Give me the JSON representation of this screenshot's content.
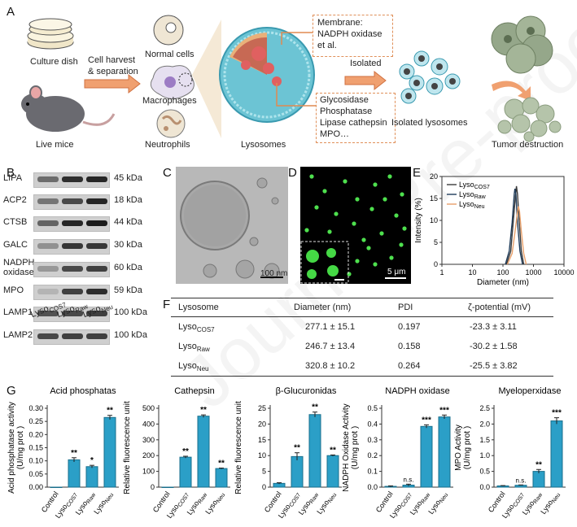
{
  "panelA": {
    "letter": "A",
    "culture_dish": "Culture dish",
    "live_mice": "Live mice",
    "cell_harvest_1": "Cell harvest",
    "cell_harvest_2": "& separation",
    "normal_cells": "Normal cells",
    "macrophages": "Macrophages",
    "neutrophils": "Neutrophils",
    "lysosomes": "Lysosomes",
    "membrane_1": "Membrane:",
    "membrane_2": "NADPH oxidase",
    "membrane_3": "et al.",
    "enzymes_1": "Glycosidase",
    "enzymes_2": "Phosphatase",
    "enzymes_3": "Lipase cathepsin",
    "enzymes_4": "MPO…",
    "isolated": "Isolated",
    "isolated_lysosomes": "Isolated lysosomes",
    "tumor_destruction": "Tumor destruction"
  },
  "panelB": {
    "letter": "B",
    "rows": [
      {
        "label": "LIPA",
        "kda": "45 kDa"
      },
      {
        "label": "ACP2",
        "kda": "18 kDa"
      },
      {
        "label": "CTSB",
        "kda": "44 kDa"
      },
      {
        "label": "GALC",
        "kda": "30 kDa"
      },
      {
        "label": "NADPH oxidase",
        "kda": "60 kDa"
      },
      {
        "label": "MPO",
        "kda": "59 kDa"
      },
      {
        "label": "LAMP1",
        "kda": "100 kDa"
      },
      {
        "label": "LAMP2",
        "kda": "100 kDa"
      }
    ],
    "lanes": [
      "Lyso",
      "Lyso",
      "Lyso"
    ],
    "lane_subs": [
      "COS7",
      "Raw",
      "Neu"
    ]
  },
  "panelC": {
    "letter": "C",
    "scale": "100 nm"
  },
  "panelD": {
    "letter": "D",
    "scale": "5 μm"
  },
  "panelE": {
    "letter": "E",
    "chart_data": {
      "type": "line",
      "xlabel": "Diameter (nm)",
      "ylabel": "Intensity (%)",
      "xscale": "log",
      "xlim": [
        1,
        10000
      ],
      "ylim": [
        0,
        20
      ],
      "xticks": [
        "1",
        "10",
        "100",
        "1000",
        "10000"
      ],
      "yticks": [
        "0",
        "5",
        "10",
        "15",
        "20"
      ],
      "series": [
        {
          "name": "LysoCOS7",
          "label": "Lyso",
          "sub": "COS7",
          "color": "#3a3a3a",
          "x": [
            130,
            180,
            220,
            260,
            277,
            300,
            340,
            400,
            480
          ],
          "y": [
            0,
            3,
            10,
            16,
            17.8,
            16,
            10,
            3,
            0
          ]
        },
        {
          "name": "LysoRaw",
          "label": "Lyso",
          "sub": "Raw",
          "color": "#1f3c5a",
          "x": [
            120,
            160,
            200,
            235,
            247,
            265,
            300,
            360,
            440
          ],
          "y": [
            0,
            3,
            9.5,
            16,
            17.2,
            16,
            9.5,
            3,
            0
          ]
        },
        {
          "name": "LysoNeu",
          "label": "Lyso",
          "sub": "Neu",
          "color": "#e8a06a",
          "x": [
            140,
            200,
            250,
            300,
            321,
            350,
            400,
            480,
            580
          ],
          "y": [
            0,
            2.5,
            7.5,
            12,
            13.2,
            12,
            7.5,
            2.5,
            0
          ]
        }
      ]
    }
  },
  "panelF": {
    "letter": "F",
    "headers": [
      "Lysosome",
      "Diameter (nm)",
      "PDI",
      "ζ-potential (mV)"
    ],
    "rows": [
      {
        "name": "Lyso",
        "sub": "COS7",
        "diameter": "277.1 ± 15.1",
        "pdi": "0.197",
        "zeta": "-23.3 ± 3.11"
      },
      {
        "name": "Lyso",
        "sub": "Raw",
        "diameter": "246.7 ± 13.4",
        "pdi": "0.158",
        "zeta": "-30.2 ± 1.58"
      },
      {
        "name": "Lyso",
        "sub": "Neu",
        "diameter": "320.8 ± 10.2",
        "pdi": "0.264",
        "zeta": "-25.5 ± 3.82"
      }
    ]
  },
  "panelG": {
    "letter": "G",
    "chart_data": [
      {
        "type": "bar",
        "title": "Acid phosphatas",
        "ylabel": "Acid phosphatase activity (U/mg prot )",
        "ylim": [
          0,
          0.3
        ],
        "yticks": [
          "0.00",
          "0.05",
          "0.10",
          "0.15",
          "0.20",
          "0.25",
          "0.30"
        ],
        "categories": [
          "Control",
          "LysoCOS7",
          "LysoRaw",
          "LysoNeu"
        ],
        "values": [
          0.0,
          0.104,
          0.078,
          0.265
        ],
        "errors": [
          0,
          0.008,
          0.005,
          0.008
        ],
        "sig": [
          "",
          "**",
          "*",
          "**"
        ]
      },
      {
        "type": "bar",
        "title": "Cathepsin",
        "ylabel": "Relative fluorescence unit",
        "ylim": [
          0,
          500
        ],
        "yticks": [
          "0",
          "100",
          "200",
          "300",
          "400",
          "500"
        ],
        "categories": [
          "Control",
          "LysoCOS7",
          "LysoRaw",
          "LysoNeu"
        ],
        "values": [
          0,
          190,
          450,
          118
        ],
        "errors": [
          0,
          6,
          8,
          3
        ],
        "sig": [
          "",
          "**",
          "**",
          "**"
        ]
      },
      {
        "type": "bar",
        "title": "β-Glucuronidas",
        "ylabel": "Relative fluorescence unit",
        "ylim": [
          0,
          25
        ],
        "yticks": [
          "0",
          "5",
          "10",
          "15",
          "20",
          "25"
        ],
        "categories": [
          "Control",
          "LysoCOS7",
          "LysoRaw",
          "LysoNeu"
        ],
        "values": [
          1.2,
          9.7,
          23.0,
          10.0
        ],
        "errors": [
          0.2,
          1.2,
          0.8,
          0.2
        ],
        "sig": [
          "",
          "**",
          "**",
          "**"
        ]
      },
      {
        "type": "bar",
        "title": "NADPH oxidase",
        "ylabel": "NADPH Oxidase Activity (U/mg prot )",
        "ylim": [
          0,
          0.5
        ],
        "yticks": [
          "0.0",
          "0.1",
          "0.2",
          "0.3",
          "0.4",
          "0.5"
        ],
        "categories": [
          "Control",
          "LysoCOS7",
          "LysoRaw",
          "LysoNeu"
        ],
        "values": [
          0.005,
          0.013,
          0.385,
          0.445
        ],
        "errors": [
          0.003,
          0.006,
          0.01,
          0.012
        ],
        "sig": [
          "",
          "n.s.",
          "***",
          "***"
        ]
      },
      {
        "type": "bar",
        "title": "Myeloperxidase",
        "ylabel": "MPO Activity (U/mg prot )",
        "ylim": [
          0,
          2.5
        ],
        "yticks": [
          "0.0",
          "0.5",
          "1.0",
          "1.5",
          "2.0",
          "2.5"
        ],
        "categories": [
          "Control",
          "LysoCOS7",
          "LysoRaw",
          "LysoNeu"
        ],
        "values": [
          0.04,
          0.06,
          0.5,
          2.1
        ],
        "errors": [
          0.01,
          0.01,
          0.06,
          0.1
        ],
        "sig": [
          "",
          "n.s.",
          "**",
          "***"
        ]
      }
    ]
  },
  "watermark": "Journal Pre-proof",
  "colors": {
    "bar": "#2b9fc7",
    "bar_edge": "#1a6f8c",
    "accent": "#e8a06a"
  }
}
